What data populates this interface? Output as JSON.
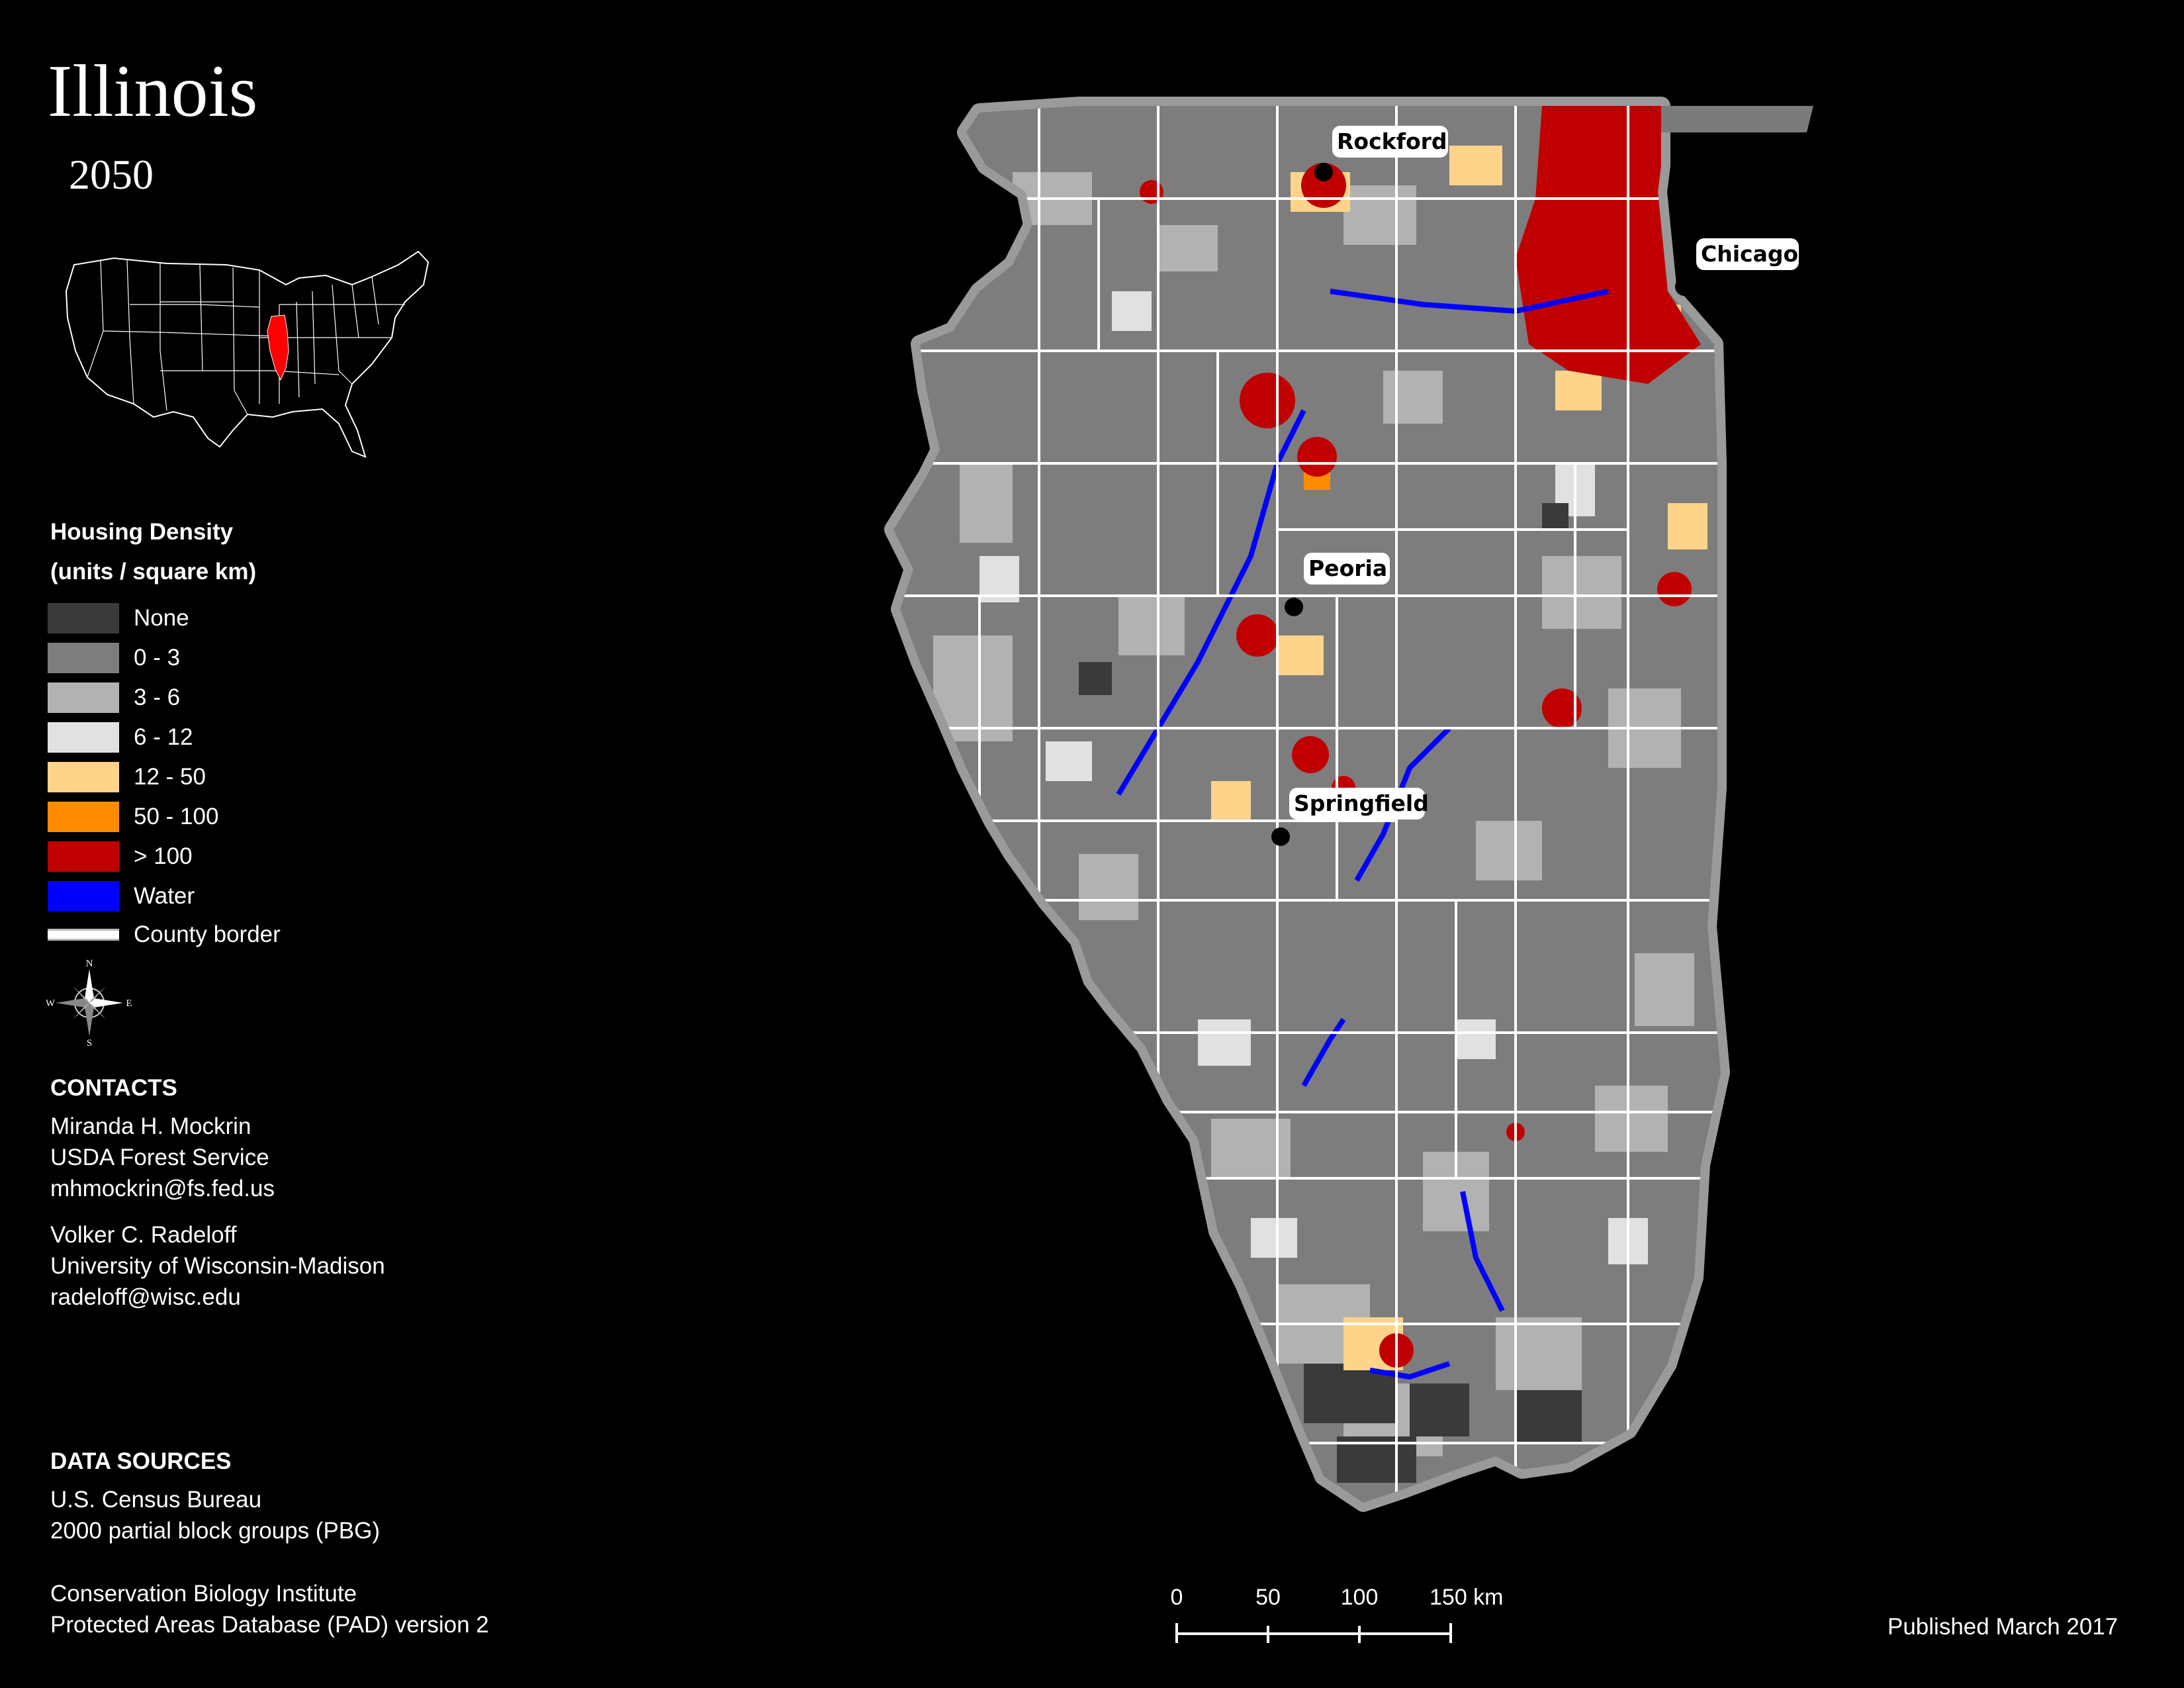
{
  "title": "Illinois",
  "year": "2050",
  "locator": {
    "highlight_color": "#ff0000",
    "state_fill": "#000000",
    "line_color": "#ffffff"
  },
  "legend": {
    "title_line1": "Housing Density",
    "title_line2": "(units / square km)",
    "items": [
      {
        "label": "None",
        "color": "#3a3a3a"
      },
      {
        "label": "0 - 3",
        "color": "#7d7d7d"
      },
      {
        "label": "3 - 6",
        "color": "#b2b2b2"
      },
      {
        "label": "6 - 12",
        "color": "#e1e1e1"
      },
      {
        "label": "12 - 50",
        "color": "#ffd38a"
      },
      {
        "label": "50 - 100",
        "color": "#ff8c00"
      },
      {
        "label": "> 100",
        "color": "#c00000"
      },
      {
        "label": "Water",
        "color": "#0000ff"
      }
    ],
    "border_label": "County border"
  },
  "compass": {
    "n": "N",
    "s": "S",
    "e": "E",
    "w": "W"
  },
  "contacts": {
    "heading": "CONTACTS",
    "person1": [
      "Miranda H. Mockrin",
      "USDA Forest Service",
      "mhmockrin@fs.fed.us"
    ],
    "person2": [
      "Volker C. Radeloff",
      "University of Wisconsin-Madison",
      "radeloff@wisc.edu"
    ]
  },
  "data_sources": {
    "heading": "DATA SOURCES",
    "source1": [
      "U.S. Census Bureau",
      "2000 partial block groups (PBG)"
    ],
    "source2": [
      "Conservation Biology Institute",
      "Protected Areas Database (PAD) version 2"
    ]
  },
  "cities": [
    {
      "name": "Rockford"
    },
    {
      "name": "Chicago"
    },
    {
      "name": "Peoria"
    },
    {
      "name": "Springfield"
    }
  ],
  "scale": {
    "ticks": [
      "0",
      "50",
      "100",
      "150 km"
    ]
  },
  "published": "Published March 2017"
}
